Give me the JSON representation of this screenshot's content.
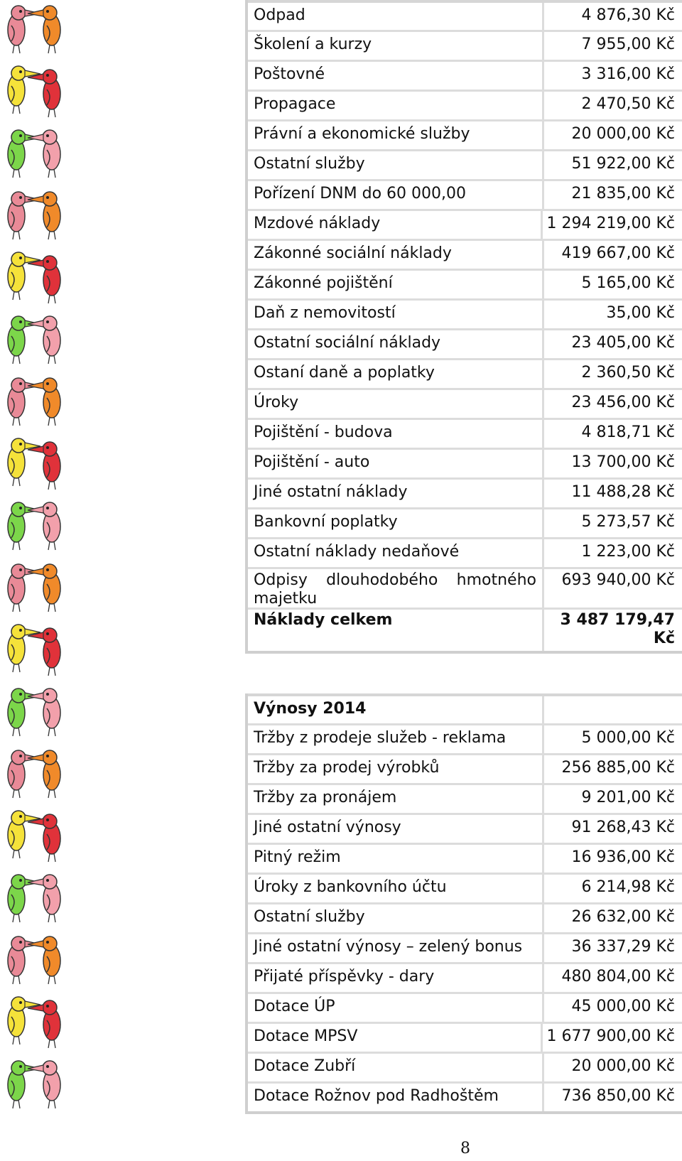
{
  "expenses": {
    "rows": [
      {
        "label": "Odpad",
        "value": "4 876,30 Kč"
      },
      {
        "label": "Školení a kurzy",
        "value": "7 955,00 Kč"
      },
      {
        "label": "Poštovné",
        "value": "3 316,00 Kč"
      },
      {
        "label": "Propagace",
        "value": "2 470,50 Kč"
      },
      {
        "label": "Právní a ekonomické služby",
        "value": "20 000,00 Kč"
      },
      {
        "label": "Ostatní služby",
        "value": "51 922,00 Kč"
      },
      {
        "label": "Pořízení DNM do 60 000,00",
        "value": "21 835,00 Kč"
      },
      {
        "label": "Mzdové náklady",
        "value": "1 294 219,00 Kč"
      },
      {
        "label": "Zákonné sociální náklady",
        "value": "419 667,00 Kč"
      },
      {
        "label": "Zákonné pojištění",
        "value": "5 165,00 Kč"
      },
      {
        "label": "Daň z nemovitostí",
        "value": "35,00 Kč"
      },
      {
        "label": "Ostatní sociální náklady",
        "value": "23 405,00 Kč"
      },
      {
        "label": "Ostaní daně a poplatky",
        "value": "2 360,50 Kč"
      },
      {
        "label": "Úroky",
        "value": "23 456,00 Kč"
      },
      {
        "label": "Pojištění - budova",
        "value": "4 818,71 Kč"
      },
      {
        "label": "Pojištění - auto",
        "value": "13 700,00 Kč"
      },
      {
        "label": "Jiné ostatní náklady",
        "value": "11 488,28 Kč"
      },
      {
        "label": "Bankovní poplatky",
        "value": "5 273,57 Kč"
      },
      {
        "label": "Ostatní náklady nedaňové",
        "value": "1 223,00 Kč"
      }
    ],
    "depreciation": {
      "label_line1": "Odpisy dlouhodobého hmotného",
      "label_line2": "majetku",
      "value": "693 940,00 Kč"
    },
    "total": {
      "label": "Náklady celkem",
      "value_line1": "3 487 179,47",
      "value_line2": "Kč"
    }
  },
  "revenues": {
    "title": "Výnosy 2014",
    "rows": [
      {
        "label": "Tržby z prodeje služeb - reklama",
        "value": "5 000,00 Kč"
      },
      {
        "label": "Tržby za prodej výrobků",
        "value": "256 885,00 Kč"
      },
      {
        "label": "Tržby za pronájem",
        "value": "9 201,00 Kč"
      },
      {
        "label": "Jiné ostatní výnosy",
        "value": "91 268,43 Kč"
      },
      {
        "label": "Pitný režim",
        "value": "16 936,00 Kč"
      },
      {
        "label": "Úroky z bankovního účtu",
        "value": "6 214,98 Kč"
      },
      {
        "label": "Ostatní služby",
        "value": "26 632,00 Kč"
      },
      {
        "label": "Jiné ostatní výnosy – zelený bonus",
        "value": "36 337,29 Kč"
      },
      {
        "label": "Přijaté příspěvky - dary",
        "value": "480 804,00 Kč"
      },
      {
        "label": "Dotace ÚP",
        "value": "45 000,00 Kč"
      },
      {
        "label": "Dotace MPSV",
        "value": "1 677 900,00 Kč"
      },
      {
        "label": "Dotace Zubří",
        "value": "20 000,00 Kč"
      },
      {
        "label": "Dotace Rožnov pod Radhoštěm",
        "value": "736 850,00 Kč"
      }
    ]
  },
  "page_number": "8",
  "decoration": {
    "bird_colors": [
      "#e98a97",
      "#f08a2a",
      "#f5e23a",
      "#e0323a",
      "#7cd64a",
      "#f2a0ab"
    ]
  }
}
